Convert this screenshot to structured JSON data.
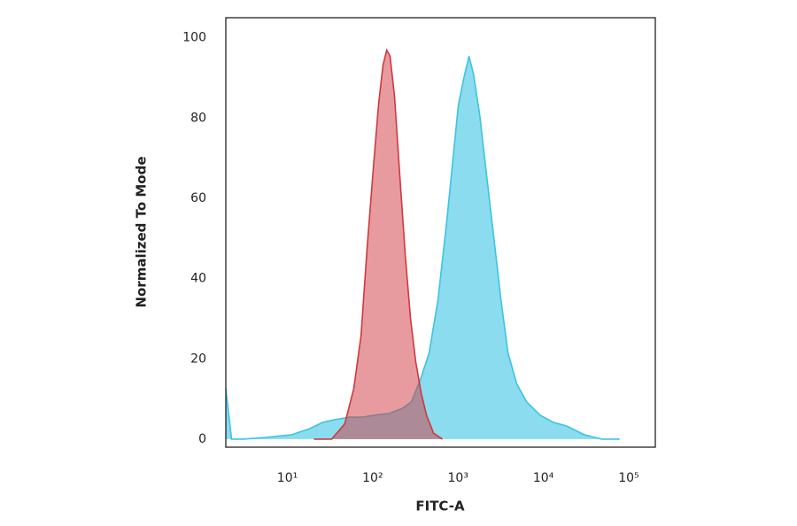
{
  "chart_data": {
    "type": "histogram-overlay",
    "xlabel": "FITC-A",
    "ylabel": "Normalized To Mode",
    "xscale": "log",
    "xlim": [
      1.9,
      205000
    ],
    "ylim": [
      -2,
      105
    ],
    "xticks": [
      {
        "value": 10,
        "label": "10¹"
      },
      {
        "value": 100,
        "label": "10²"
      },
      {
        "value": 1000,
        "label": "10³"
      },
      {
        "value": 10000,
        "label": "10⁴"
      },
      {
        "value": 100000,
        "label": "10⁵"
      }
    ],
    "yticks": [
      0,
      20,
      40,
      60,
      80,
      100
    ],
    "series": [
      {
        "color": "#3cc4e2",
        "x": [
          1.9,
          2.22,
          3.03,
          5.5,
          11.3,
          18.2,
          26,
          37,
          53,
          76,
          109,
          156,
          224,
          284,
          361,
          458,
          582,
          740,
          875,
          1010,
          1165,
          1345,
          1517,
          1792,
          2168,
          2628,
          3183,
          3855,
          4898,
          6370,
          9120,
          13030,
          18660,
          30100,
          48500,
          78300
        ],
        "values": [
          12.6,
          0,
          0,
          0.4,
          1.1,
          2.6,
          4.2,
          4.9,
          5.5,
          5.5,
          6.0,
          6.4,
          7.7,
          9.3,
          14.8,
          21.4,
          34.7,
          54.5,
          70,
          83.2,
          89.8,
          95.4,
          91,
          81,
          65.6,
          50.1,
          34.7,
          21.4,
          13.7,
          9.3,
          6.0,
          4.2,
          3.3,
          1.1,
          0,
          0
        ]
      },
      {
        "color": "#d0383f",
        "x": [
          20.5,
          33,
          47,
          60,
          73,
          86,
          102,
          117,
          132,
          146,
          160,
          180,
          208,
          241,
          277,
          320,
          370,
          427,
          516,
          656
        ],
        "values": [
          0,
          0,
          3.8,
          12.6,
          25.8,
          47.8,
          67.8,
          83.2,
          93.2,
          96.9,
          95.4,
          85.4,
          65.6,
          45.7,
          30.2,
          19.2,
          11.5,
          6.0,
          1.5,
          0
        ]
      }
    ]
  }
}
